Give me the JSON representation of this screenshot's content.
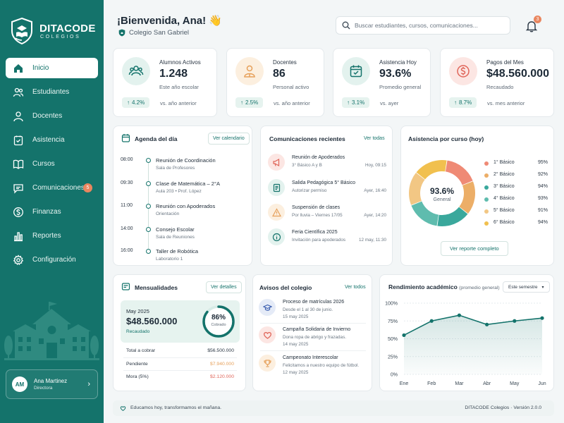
{
  "brand": {
    "name": "DITACODE",
    "sub": "COLEGIOS"
  },
  "nav": [
    {
      "label": "Inicio",
      "icon": "home-icon",
      "active": true
    },
    {
      "label": "Estudiantes",
      "icon": "students-icon"
    },
    {
      "label": "Docentes",
      "icon": "teacher-icon"
    },
    {
      "label": "Asistencia",
      "icon": "attendance-icon"
    },
    {
      "label": "Cursos",
      "icon": "book-icon"
    },
    {
      "label": "Comunicaciones",
      "icon": "chat-icon",
      "badge": "5"
    },
    {
      "label": "Finanzas",
      "icon": "dollar-icon"
    },
    {
      "label": "Reportes",
      "icon": "bar-chart-icon"
    },
    {
      "label": "Configuración",
      "icon": "gear-icon"
    }
  ],
  "user": {
    "initials": "AM",
    "name": "Ana Martinez",
    "role": "Directora"
  },
  "header": {
    "title": "¡Bienvenida, Ana! 👋",
    "school": "Colegio San Gabriel",
    "search_placeholder": "Buscar estudiantes, cursos, comunicaciones...",
    "notif_count": "3"
  },
  "stats": [
    {
      "label": "Alumnos Activos",
      "value": "1.248",
      "sub": "Este año escolar",
      "delta": "4.2%",
      "cmp": "vs. año anterior",
      "icon": "users-icon",
      "color": "#14736b",
      "bg": "#e3f2ee"
    },
    {
      "label": "Docentes",
      "value": "86",
      "sub": "Personal activo",
      "delta": "2.5%",
      "cmp": "vs. año anterior",
      "icon": "teacher-icon",
      "color": "#e6a05a",
      "bg": "#fcefdf"
    },
    {
      "label": "Asistencia Hoy",
      "value": "93.6%",
      "sub": "Promedio general",
      "delta": "3.1%",
      "cmp": "vs. ayer",
      "icon": "calendar-check-icon",
      "color": "#14736b",
      "bg": "#e3f2ee"
    },
    {
      "label": "Pagos del Mes",
      "value": "$48.560.000",
      "sub": "Recaudado",
      "delta": "8.7%",
      "cmp": "vs. mes anterior",
      "icon": "dollar-icon",
      "color": "#e0665a",
      "bg": "#fce6e3"
    }
  ],
  "agenda": {
    "title": "Agenda del día",
    "link": "Ver calendario",
    "items": [
      {
        "time": "08:00",
        "title": "Reunión de Coordinación",
        "sub": "Sala de Profesores"
      },
      {
        "time": "09:30",
        "title": "Clase de Matemática – 2°A",
        "sub": "Aula 203  •  Prof. López"
      },
      {
        "time": "11:00",
        "title": "Reunión con Apoderados",
        "sub": "Orientación"
      },
      {
        "time": "14:00",
        "title": "Consejo Escolar",
        "sub": "Sala de Reuniones"
      },
      {
        "time": "16:00",
        "title": "Taller de Robótica",
        "sub": "Laboratorio 1"
      }
    ]
  },
  "comms": {
    "title": "Comunicaciones recientes",
    "link": "Ver todas",
    "items": [
      {
        "title": "Reunión de Apoderados",
        "sub": "3° Básico A y B",
        "time": "Hoy, 09:15",
        "icon": "megaphone-icon",
        "color": "#e0665a",
        "bg": "#fce6e3"
      },
      {
        "title": "Salida Pedagógica 5° Básico",
        "sub": "Autorizar permiso",
        "time": "Ayer, 16:40",
        "icon": "document-icon",
        "color": "#14736b",
        "bg": "#e3f2ee"
      },
      {
        "title": "Suspensión de clases",
        "sub": "Por lluvia – Viernes 17/05",
        "time": "Ayer, 14:20",
        "icon": "warning-icon",
        "color": "#e6a05a",
        "bg": "#fcefdf"
      },
      {
        "title": "Feria Científica 2025",
        "sub": "Invitación para apoderados",
        "time": "12 may, 11:30",
        "icon": "info-icon",
        "color": "#14736b",
        "bg": "#e3f2ee"
      }
    ]
  },
  "attendance": {
    "title": "Asistencia por curso (hoy)",
    "center_value": "93.6%",
    "center_label": "General",
    "button": "Ver reporte completo",
    "items": [
      {
        "name": "1° Básico",
        "value": "95%",
        "color": "#ef8a75"
      },
      {
        "name": "2° Básico",
        "value": "92%",
        "color": "#ecae67"
      },
      {
        "name": "3° Básico",
        "value": "94%",
        "color": "#3aa89c"
      },
      {
        "name": "4° Básico",
        "value": "93%",
        "color": "#5fbcae"
      },
      {
        "name": "5° Básico",
        "value": "91%",
        "color": "#f2c784"
      },
      {
        "name": "6° Básico",
        "value": "94%",
        "color": "#f1c04e"
      }
    ]
  },
  "mensualidades": {
    "title": "Mensualidades",
    "link": "Ver detalles",
    "month": "May 2025",
    "amount": "$48.560.000",
    "amount_label": "Recaudado",
    "percent": "86%",
    "percent_value": 0.86,
    "percent_label": "Cobrado",
    "rows": [
      {
        "label": "Total a cobrar",
        "value": "$56.500.000",
        "color": "#2b3744"
      },
      {
        "label": "Pendiente",
        "value": "$7.940.000",
        "color": "#e6a05a"
      },
      {
        "label": "Mora (5%)",
        "value": "$2.120.000",
        "color": "#e0665a"
      }
    ]
  },
  "avisos": {
    "title": "Avisos del colegio",
    "link": "Ver todos",
    "items": [
      {
        "title": "Proceso de matrículas 2026",
        "sub": "Desde el 1 al 30 de junio.",
        "date": "15 may 2025",
        "icon": "graduation-cap-icon",
        "color": "#3c5fb0",
        "bg": "#e5ebf7"
      },
      {
        "title": "Campaña Solidaria de Invierno",
        "sub": "Dona ropa de abrigo y frazadas.",
        "date": "14 may 2025",
        "icon": "heart-icon",
        "color": "#e0665a",
        "bg": "#fce6e3"
      },
      {
        "title": "Campeonato Interescolar",
        "sub": "Felicitamos a nuestro equipo de fútbol.",
        "date": "12 may 2025",
        "icon": "trophy-icon",
        "color": "#e6a05a",
        "bg": "#fcefdf"
      }
    ]
  },
  "rendimiento": {
    "title": "Rendimiento académico",
    "subtitle": "(promedio general)",
    "select": "Este semestre"
  },
  "chart_data": {
    "type": "area",
    "title": "Rendimiento académico",
    "categories": [
      "Ene",
      "Feb",
      "Mar",
      "Abr",
      "May",
      "Jun"
    ],
    "values": [
      55,
      75,
      83,
      70,
      75,
      79
    ],
    "ylim": [
      0,
      100
    ],
    "yticks": [
      "0%",
      "25%",
      "50%",
      "75%",
      "100%"
    ],
    "color": "#14736b"
  },
  "footer": {
    "left": "Educamos hoy, transformamos el mañana.",
    "right": "DITACODE Colegios  ·  Versión 2.0.0"
  }
}
